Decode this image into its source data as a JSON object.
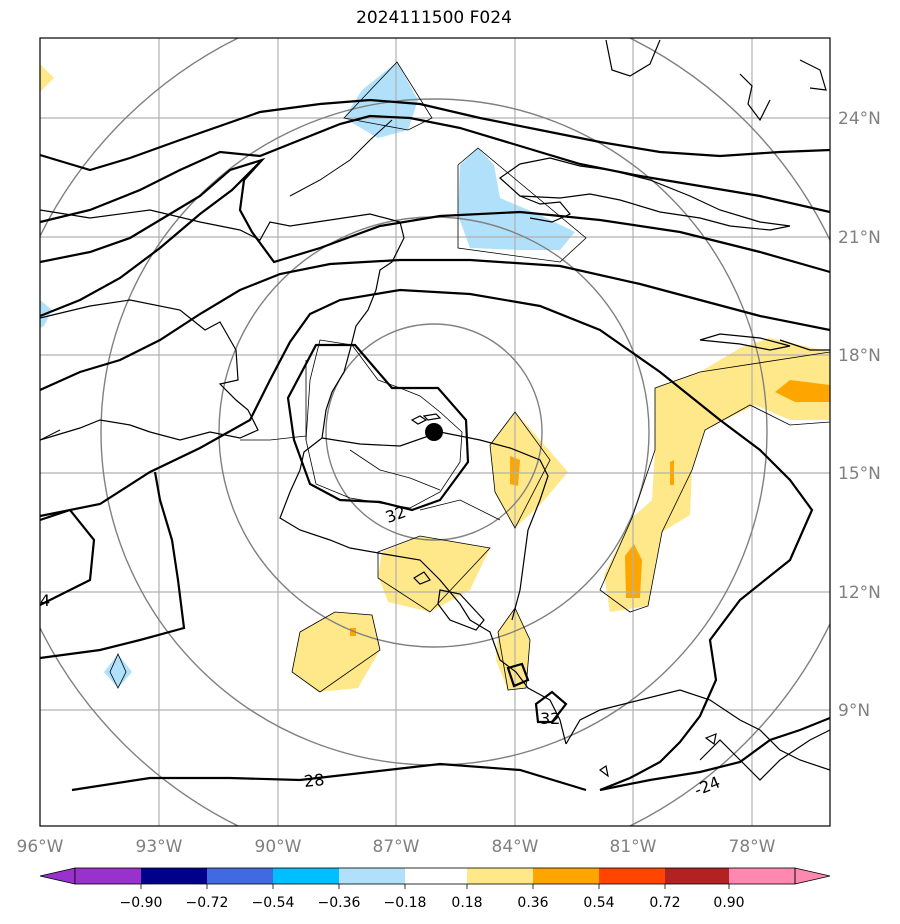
{
  "title": "2024111500 F024",
  "lon_labels": [
    "96°W",
    "93°W",
    "90°W",
    "87°W",
    "84°W",
    "81°W",
    "78°W"
  ],
  "lat_labels": [
    "24°N",
    "21°N",
    "18°N",
    "15°N",
    "12°N",
    "9°N"
  ],
  "colorbar": {
    "ticks": [
      "−0.90",
      "−0.72",
      "−0.54",
      "−0.36",
      "−0.18",
      "0.18",
      "0.36",
      "0.54",
      "0.72",
      "0.90"
    ],
    "colors": [
      "#9932cc",
      "#00008b",
      "#4169e1",
      "#00bfff",
      "#b0e0fa",
      "#ffffff",
      "#ffe88a",
      "#ffa500",
      "#ff4500",
      "#b22222",
      "#ff88b0"
    ]
  },
  "contour_labels": [
    "32",
    "32",
    "28",
    "-24",
    "4"
  ],
  "colors": {
    "contour": "#000000",
    "range_ring": "#808080",
    "grid": "#b0b0b0",
    "light_blue": "#b0e0fa",
    "yellow": "#ffe88a",
    "orange": "#ffa500"
  }
}
